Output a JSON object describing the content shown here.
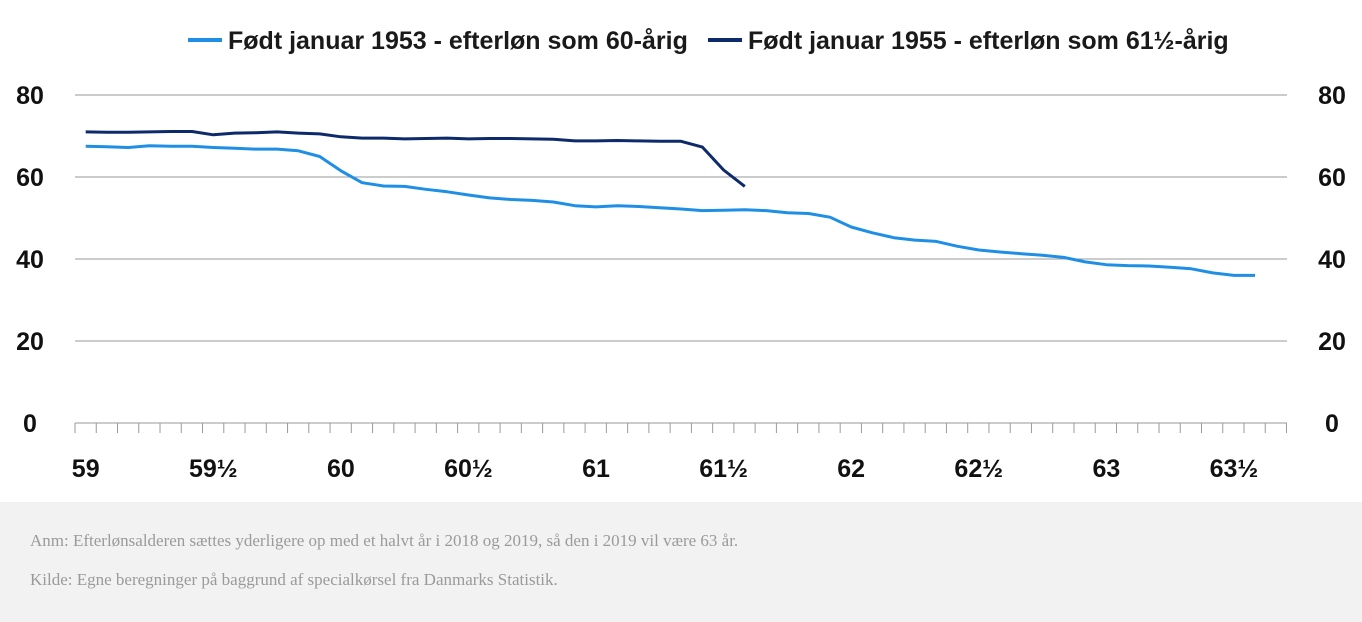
{
  "chart_data": {
    "type": "line",
    "x_ticks": [
      {
        "value": 59,
        "label": "59"
      },
      {
        "value": 59.5,
        "label": "59½"
      },
      {
        "value": 60,
        "label": "60"
      },
      {
        "value": 60.5,
        "label": "60½"
      },
      {
        "value": 61,
        "label": "61"
      },
      {
        "value": 61.5,
        "label": "61½"
      },
      {
        "value": 62,
        "label": "62"
      },
      {
        "value": 62.5,
        "label": "62½"
      },
      {
        "value": 63,
        "label": "63"
      },
      {
        "value": 63.5,
        "label": "63½"
      }
    ],
    "xlim": [
      58.958,
      63.708
    ],
    "minor_tick_step": 0.0833,
    "ylim": [
      0,
      80
    ],
    "y_ticks": [
      0,
      20,
      40,
      60,
      80
    ],
    "left_axis_labels": [
      "0",
      "20",
      "40",
      "60",
      "80"
    ],
    "right_axis_labels": [
      "0",
      "20",
      "40",
      "60",
      "80"
    ],
    "grid": true,
    "legend_position": "top",
    "series": [
      {
        "name": "Født januar 1953 - efterløn som 60-årig",
        "color": "#1f8fe5",
        "points": [
          [
            59.0,
            67.5
          ],
          [
            59.083,
            67.4
          ],
          [
            59.167,
            67.2
          ],
          [
            59.25,
            67.6
          ],
          [
            59.333,
            67.5
          ],
          [
            59.417,
            67.5
          ],
          [
            59.5,
            67.2
          ],
          [
            59.583,
            67.0
          ],
          [
            59.667,
            66.8
          ],
          [
            59.75,
            66.8
          ],
          [
            59.833,
            66.4
          ],
          [
            59.917,
            65.0
          ],
          [
            60.0,
            61.5
          ],
          [
            60.083,
            58.6
          ],
          [
            60.167,
            57.8
          ],
          [
            60.25,
            57.7
          ],
          [
            60.333,
            57.0
          ],
          [
            60.417,
            56.4
          ],
          [
            60.5,
            55.6
          ],
          [
            60.583,
            54.9
          ],
          [
            60.667,
            54.5
          ],
          [
            60.75,
            54.3
          ],
          [
            60.833,
            53.9
          ],
          [
            60.917,
            53.0
          ],
          [
            61.0,
            52.7
          ],
          [
            61.083,
            53.0
          ],
          [
            61.167,
            52.8
          ],
          [
            61.25,
            52.5
          ],
          [
            61.333,
            52.2
          ],
          [
            61.417,
            51.8
          ],
          [
            61.5,
            51.9
          ],
          [
            61.583,
            52.0
          ],
          [
            61.667,
            51.8
          ],
          [
            61.75,
            51.3
          ],
          [
            61.833,
            51.1
          ],
          [
            61.917,
            50.2
          ],
          [
            62.0,
            47.8
          ],
          [
            62.083,
            46.4
          ],
          [
            62.167,
            45.2
          ],
          [
            62.25,
            44.6
          ],
          [
            62.333,
            44.3
          ],
          [
            62.417,
            43.1
          ],
          [
            62.5,
            42.2
          ],
          [
            62.583,
            41.7
          ],
          [
            62.667,
            41.3
          ],
          [
            62.75,
            40.9
          ],
          [
            62.833,
            40.4
          ],
          [
            62.917,
            39.3
          ],
          [
            63.0,
            38.6
          ],
          [
            63.083,
            38.4
          ],
          [
            63.167,
            38.3
          ],
          [
            63.25,
            38.0
          ],
          [
            63.333,
            37.6
          ],
          [
            63.417,
            36.6
          ],
          [
            63.5,
            36.0
          ],
          [
            63.583,
            36.0
          ]
        ]
      },
      {
        "name": "Født januar 1955 - efterløn som 61½-årig",
        "color": "#0d2a6b",
        "points": [
          [
            59.0,
            71.0
          ],
          [
            59.083,
            70.9
          ],
          [
            59.167,
            70.9
          ],
          [
            59.25,
            71.0
          ],
          [
            59.333,
            71.1
          ],
          [
            59.417,
            71.1
          ],
          [
            59.5,
            70.3
          ],
          [
            59.583,
            70.7
          ],
          [
            59.667,
            70.8
          ],
          [
            59.75,
            71.0
          ],
          [
            59.833,
            70.7
          ],
          [
            59.917,
            70.5
          ],
          [
            60.0,
            69.8
          ],
          [
            60.083,
            69.5
          ],
          [
            60.167,
            69.5
          ],
          [
            60.25,
            69.3
          ],
          [
            60.333,
            69.4
          ],
          [
            60.417,
            69.5
          ],
          [
            60.5,
            69.3
          ],
          [
            60.583,
            69.4
          ],
          [
            60.667,
            69.4
          ],
          [
            60.75,
            69.3
          ],
          [
            60.833,
            69.2
          ],
          [
            60.917,
            68.8
          ],
          [
            61.0,
            68.8
          ],
          [
            61.083,
            68.9
          ],
          [
            61.167,
            68.8
          ],
          [
            61.25,
            68.7
          ],
          [
            61.333,
            68.7
          ],
          [
            61.417,
            67.3
          ],
          [
            61.5,
            61.7
          ],
          [
            61.583,
            57.7
          ]
        ]
      }
    ]
  },
  "notes": {
    "anm": "Anm: Efterlønsalderen sættes yderligere op med et halvt år i 2018 og 2019, så den i 2019 vil være 63 år.",
    "kilde": "Kilde: Egne beregninger på baggrund af specialkørsel fra Danmarks Statistik."
  }
}
